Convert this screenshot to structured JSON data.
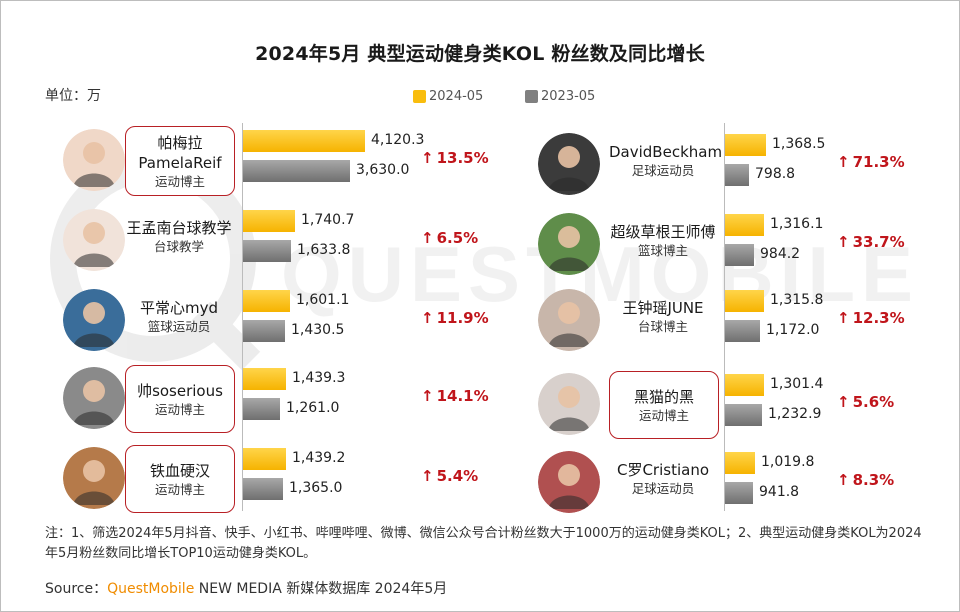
{
  "title": "2024年5月 典型运动健身类KOL 粉丝数及同比增长",
  "unit_label": "单位：万",
  "legend": [
    {
      "label": "2024-05",
      "color": "#f9bd0d"
    },
    {
      "label": "2023-05",
      "color": "#808080"
    }
  ],
  "watermark": "QUESTMOBILE",
  "chart_data": {
    "type": "bar",
    "orientation": "horizontal",
    "unit": "万",
    "series": [
      {
        "name": "2024-05",
        "color": "#f9bd0d"
      },
      {
        "name": "2023-05",
        "color": "#808080"
      }
    ],
    "rows": [
      {
        "name": "帕梅拉\nPamelaReif",
        "category": "运动博主",
        "v2024": 4120.3,
        "v2023": 3630.0,
        "v2024_label": "4,120.3",
        "v2023_label": "3,630.0",
        "growth": "13.5%",
        "boxed": true,
        "column": "left"
      },
      {
        "name": "王孟南台球教学",
        "category": "台球教学",
        "v2024": 1740.7,
        "v2023": 1633.8,
        "v2024_label": "1,740.7",
        "v2023_label": "1,633.8",
        "growth": "6.5%",
        "boxed": false,
        "column": "left"
      },
      {
        "name": "平常心myd",
        "category": "篮球运动员",
        "v2024": 1601.1,
        "v2023": 1430.5,
        "v2024_label": "1,601.1",
        "v2023_label": "1,430.5",
        "growth": "11.9%",
        "boxed": false,
        "column": "left"
      },
      {
        "name": "帅soserious",
        "category": "运动博主",
        "v2024": 1439.3,
        "v2023": 1261.0,
        "v2024_label": "1,439.3",
        "v2023_label": "1,261.0",
        "growth": "14.1%",
        "boxed": true,
        "column": "left"
      },
      {
        "name": "铁血硬汉",
        "category": "运动博主",
        "v2024": 1439.2,
        "v2023": 1365.0,
        "v2024_label": "1,439.2",
        "v2023_label": "1,365.0",
        "growth": "5.4%",
        "boxed": true,
        "column": "left"
      },
      {
        "name": "DavidBeckham",
        "category": "足球运动员",
        "v2024": 1368.5,
        "v2023": 798.8,
        "v2024_label": "1,368.5",
        "v2023_label": "798.8",
        "growth": "71.3%",
        "boxed": false,
        "column": "right"
      },
      {
        "name": "超级草根王师傅",
        "category": "篮球博主",
        "v2024": 1316.1,
        "v2023": 984.2,
        "v2024_label": "1,316.1",
        "v2023_label": "984.2",
        "growth": "33.7%",
        "boxed": false,
        "column": "right"
      },
      {
        "name": "王钟瑶JUNE",
        "category": "台球博主",
        "v2024": 1315.8,
        "v2023": 1172.0,
        "v2024_label": "1,315.8",
        "v2023_label": "1,172.0",
        "growth": "12.3%",
        "boxed": false,
        "column": "right"
      },
      {
        "name": "黑猫的黑",
        "category": "运动博主",
        "v2024": 1301.4,
        "v2023": 1232.9,
        "v2024_label": "1,301.4",
        "v2023_label": "1,232.9",
        "growth": "5.6%",
        "boxed": true,
        "column": "right"
      },
      {
        "name": "C罗Cristiano",
        "category": "足球运动员",
        "v2024": 1019.8,
        "v2023": 941.8,
        "v2024_label": "1,019.8",
        "v2023_label": "941.8",
        "growth": "8.3%",
        "boxed": false,
        "column": "right"
      }
    ]
  },
  "footnote": "注：1、筛选2024年5月抖音、快手、小红书、哔哩哔哩、微博、微信公众号合计粉丝数大于1000万的运动健身类KOL；2、典型运动健身类KOL为2024年5月粉丝数同比增长TOP10运动健身类KOL。",
  "source": {
    "prefix": "Source：",
    "brand": "QuestMobile",
    "suffix": " NEW MEDIA 新媒体数据库 2024年5月"
  }
}
